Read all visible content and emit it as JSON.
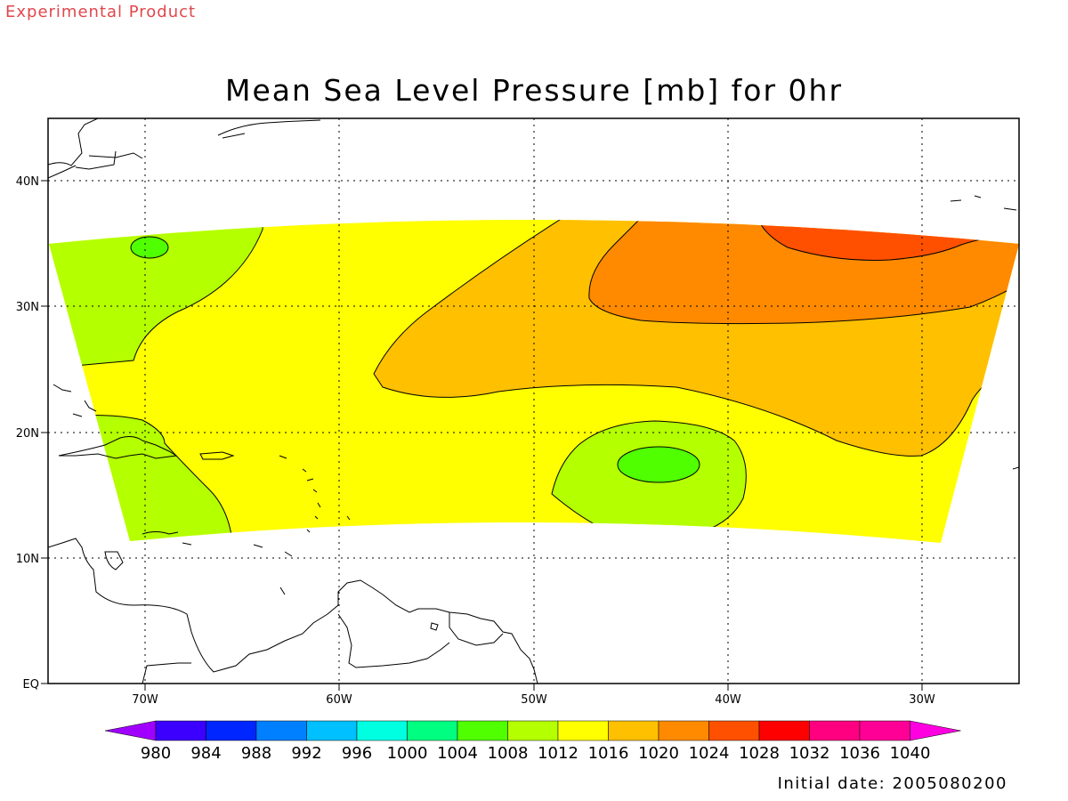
{
  "header": {
    "experimental_label": "Experimental Product"
  },
  "map": {
    "title": "Mean Sea Level Pressure [mb] for 0hr",
    "lon_labels": [
      "70W",
      "60W",
      "50W",
      "40W",
      "30W"
    ],
    "lat_labels": [
      "40N",
      "30N",
      "20N",
      "10N",
      "EQ"
    ]
  },
  "colorbar": {
    "levels": [
      "980",
      "984",
      "988",
      "992",
      "996",
      "1000",
      "1004",
      "1008",
      "1012",
      "1016",
      "1020",
      "1024",
      "1028",
      "1032",
      "1036",
      "1040"
    ],
    "colors": [
      "#a000ff",
      "#3c00ff",
      "#0026ff",
      "#0080ff",
      "#00c0ff",
      "#00ffe0",
      "#00ff80",
      "#50ff00",
      "#b4ff00",
      "#ffff00",
      "#ffc000",
      "#ff8a00",
      "#ff5000",
      "#ff0000",
      "#ff0080",
      "#ff0096",
      "#ff00e0"
    ]
  },
  "footer": {
    "initial_date": "Initial date: 2005080200"
  }
}
